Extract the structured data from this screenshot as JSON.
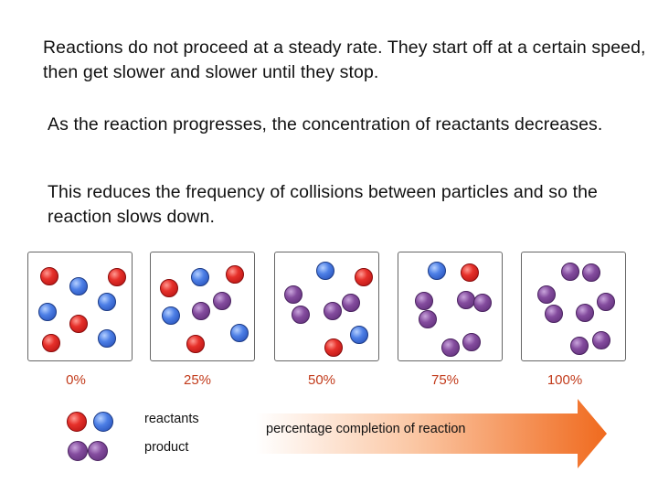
{
  "text": {
    "paragraph1": "Reactions do not proceed at a steady rate. They start off at a certain speed, then get slower and slower until they stop.",
    "paragraph2": "As the reaction progresses, the concentration of reactants decreases.",
    "paragraph3": "This reduces the frequency of collisions between particles and so the reaction slows down."
  },
  "stages": [
    {
      "label": "0%"
    },
    {
      "label": "25%"
    },
    {
      "label": "50%"
    },
    {
      "label": "75%"
    },
    {
      "label": "100%"
    }
  ],
  "legend": {
    "reactants_label": "reactants",
    "product_label": "product"
  },
  "arrow": {
    "label": "percentage completion of reaction"
  },
  "colors": {
    "percent_text": "#c23a1a",
    "arrow_start": "#ffffff",
    "arrow_end": "#f06a1e",
    "reactant_red": "#e6302a",
    "reactant_blue": "#4d7fe6",
    "product_purple": "#844c9e"
  }
}
